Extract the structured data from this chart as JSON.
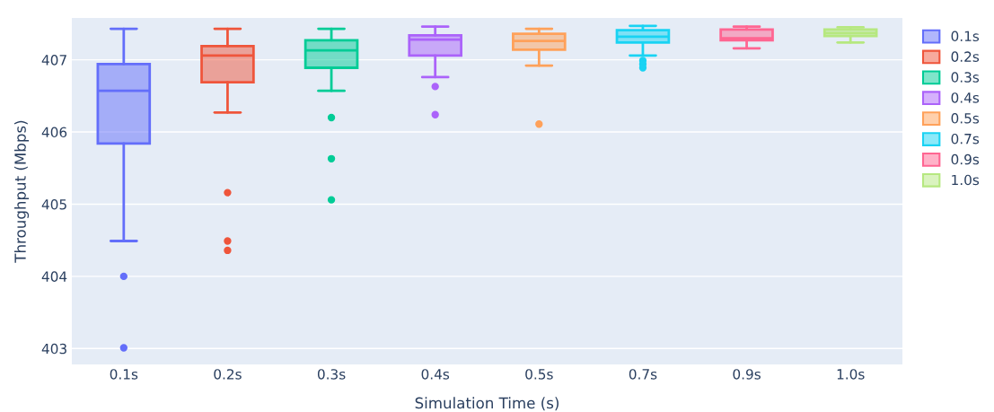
{
  "chart_data": {
    "type": "box",
    "xlabel": "Simulation Time (s)",
    "ylabel": "Throughput (Mbps)",
    "categories": [
      "0.1s",
      "0.2s",
      "0.3s",
      "0.4s",
      "0.5s",
      "0.7s",
      "0.9s",
      "1.0s"
    ],
    "ylim": [
      402.78,
      407.58
    ],
    "yticks": [
      403,
      404,
      405,
      406,
      407
    ],
    "grid": "y",
    "legend": "top right",
    "series": [
      {
        "name": "0.1s",
        "color": "#636efa",
        "boxes": [
          {
            "low": 404.49,
            "q1": 405.84,
            "median": 406.57,
            "q3": 406.94,
            "high": 407.43,
            "outliers": [
              404.0,
              403.01
            ]
          },
          null,
          null,
          null,
          null,
          null,
          null,
          null
        ]
      },
      {
        "name": "0.2s",
        "color": "#ef553b",
        "boxes": [
          null,
          {
            "low": 406.27,
            "q1": 406.69,
            "median": 407.06,
            "q3": 407.19,
            "high": 407.43,
            "outliers": [
              405.16,
              404.49,
              404.36
            ]
          },
          null,
          null,
          null,
          null,
          null,
          null
        ]
      },
      {
        "name": "0.3s",
        "color": "#00cc96",
        "boxes": [
          null,
          null,
          {
            "low": 406.57,
            "q1": 406.89,
            "median": 407.13,
            "q3": 407.27,
            "high": 407.43,
            "outliers": [
              406.2,
              405.63,
              405.06
            ]
          },
          null,
          null,
          null,
          null,
          null
        ]
      },
      {
        "name": "0.4s",
        "color": "#ab63fa",
        "boxes": [
          null,
          null,
          null,
          {
            "low": 406.76,
            "q1": 407.06,
            "median": 407.28,
            "q3": 407.34,
            "high": 407.46,
            "outliers": [
              406.63,
              406.24
            ]
          },
          null,
          null,
          null,
          null
        ]
      },
      {
        "name": "0.5s",
        "color": "#ffa15a",
        "boxes": [
          null,
          null,
          null,
          null,
          {
            "low": 406.92,
            "q1": 407.14,
            "median": 407.26,
            "q3": 407.36,
            "high": 407.43,
            "outliers": [
              406.11
            ]
          },
          null,
          null,
          null
        ]
      },
      {
        "name": "0.7s",
        "color": "#19d3f3",
        "boxes": [
          null,
          null,
          null,
          null,
          null,
          {
            "low": 407.06,
            "q1": 407.24,
            "median": 407.32,
            "q3": 407.41,
            "high": 407.47,
            "outliers": [
              406.99,
              406.94,
              406.89
            ]
          },
          null,
          null
        ]
      },
      {
        "name": "0.9s",
        "color": "#ff6692",
        "boxes": [
          null,
          null,
          null,
          null,
          null,
          null,
          {
            "low": 407.16,
            "q1": 407.27,
            "median": 407.3,
            "q3": 407.42,
            "high": 407.46
          },
          null
        ]
      },
      {
        "name": "1.0s",
        "color": "#b6e880",
        "boxes": [
          null,
          null,
          null,
          null,
          null,
          null,
          null,
          {
            "low": 407.24,
            "q1": 407.33,
            "median": 407.37,
            "q3": 407.42,
            "high": 407.45
          }
        ]
      }
    ]
  }
}
